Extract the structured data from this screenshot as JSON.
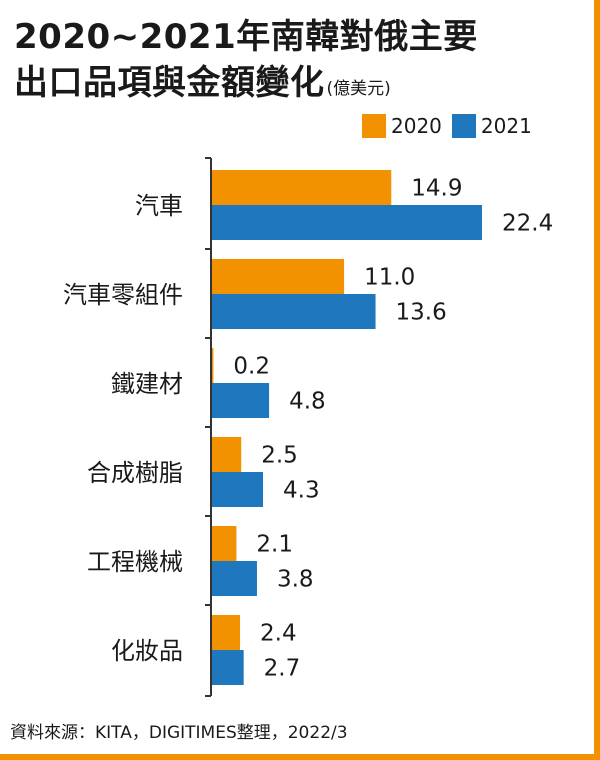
{
  "title": {
    "line1": "2020~2021年南韓對俄主要",
    "line2": "出口品項與金額變化",
    "unit": "(億美元)"
  },
  "legend": [
    {
      "label": "2020",
      "color": "#f39200"
    },
    {
      "label": "2021",
      "color": "#1f78bd"
    }
  ],
  "source": "資料來源：KITA，DIGITIMES整理，2022/3",
  "chart_data": {
    "type": "bar",
    "orientation": "horizontal",
    "categories": [
      "汽車",
      "汽車零組件",
      "鐵建材",
      "合成樹脂",
      "工程機械",
      "化妝品"
    ],
    "series": [
      {
        "name": "2020",
        "color": "#f39200",
        "values": [
          14.9,
          11.0,
          0.2,
          2.5,
          2.1,
          2.4
        ],
        "labels": [
          "14.9",
          "11.0",
          "0.2",
          "2.5",
          "2.1",
          "2.4"
        ]
      },
      {
        "name": "2021",
        "color": "#1f78bd",
        "values": [
          22.4,
          13.6,
          4.8,
          4.3,
          3.8,
          2.7
        ],
        "labels": [
          "22.4",
          "13.6",
          "4.8",
          "4.3",
          "3.8",
          "2.7"
        ]
      }
    ],
    "xlim": [
      0,
      22.4
    ],
    "unit": "億美元",
    "legend_position": "top-right",
    "grid": false
  }
}
